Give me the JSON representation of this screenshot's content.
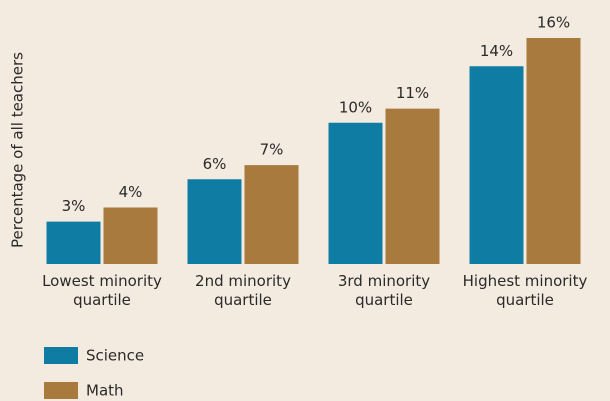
{
  "chart_data": {
    "type": "bar",
    "y_axis_label": "Percentage of all teachers",
    "categories": [
      "Lowest minority quartile",
      "2nd minority quartile",
      "3rd minority quartile",
      "Highest minority quartile"
    ],
    "series": [
      {
        "name": "Science",
        "color": "#0f7ca3",
        "values": [
          3,
          6,
          10,
          14
        ],
        "value_labels": [
          "3%",
          "6%",
          "10%",
          "14%"
        ]
      },
      {
        "name": "Math",
        "color": "#a87a3d",
        "values": [
          4,
          7,
          11,
          16
        ],
        "value_labels": [
          "4%",
          "7%",
          "11%",
          "16%"
        ]
      }
    ],
    "legend": "bottom-left"
  }
}
